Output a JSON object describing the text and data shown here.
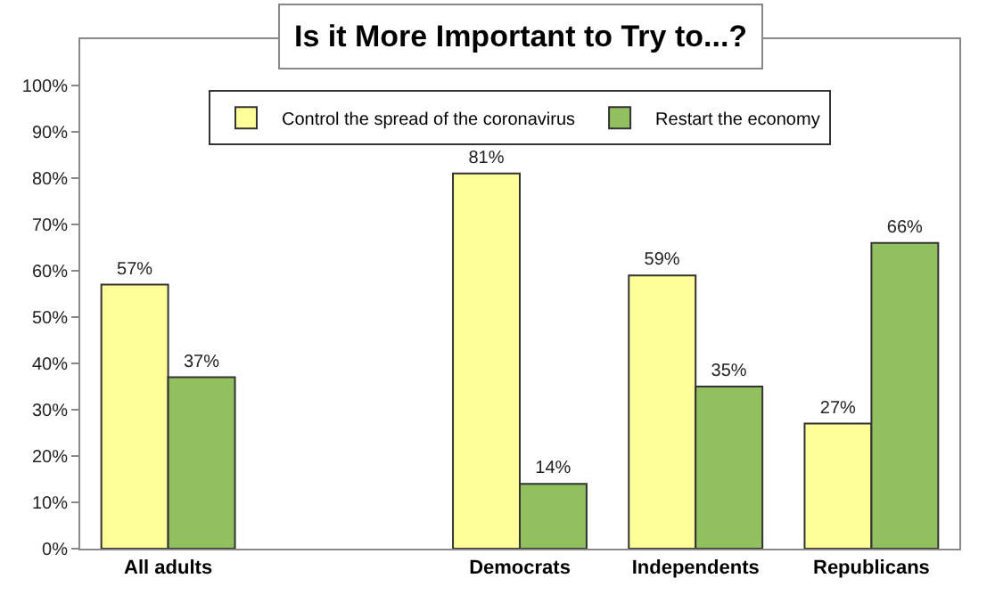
{
  "chart_data": {
    "type": "bar",
    "title": "Is it More Important to Try to...?",
    "categories": [
      "All adults",
      null,
      "Democrats",
      "Independents",
      "Republicans"
    ],
    "series": [
      {
        "name": "Control the spread of the coronavirus",
        "color": "#ffff99",
        "values": [
          57,
          null,
          81,
          59,
          27
        ],
        "value_labels": [
          "57%",
          null,
          "81%",
          "59%",
          "27%"
        ]
      },
      {
        "name": "Restart the economy",
        "color": "#92c05e",
        "values": [
          37,
          null,
          14,
          35,
          66
        ],
        "value_labels": [
          "37%",
          null,
          "14%",
          "35%",
          "66%"
        ]
      }
    ],
    "ylim": [
      0,
      110
    ],
    "yticks": [
      {
        "value": 0,
        "label": "0%"
      },
      {
        "value": 10,
        "label": "10%"
      },
      {
        "value": 20,
        "label": "20%"
      },
      {
        "value": 30,
        "label": "30%"
      },
      {
        "value": 40,
        "label": "40%"
      },
      {
        "value": 50,
        "label": "50%"
      },
      {
        "value": 60,
        "label": "60%"
      },
      {
        "value": 70,
        "label": "70%"
      },
      {
        "value": 80,
        "label": "80%"
      },
      {
        "value": 90,
        "label": "90%"
      },
      {
        "value": 100,
        "label": "100%"
      }
    ],
    "legend": "top"
  }
}
